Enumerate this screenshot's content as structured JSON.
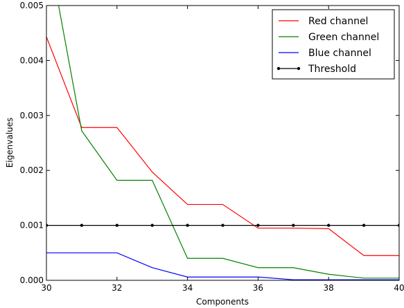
{
  "chart_data": {
    "type": "line",
    "title": "",
    "xlabel": "Components",
    "ylabel": "Eigenvalues",
    "xlim": [
      30,
      40
    ],
    "ylim": [
      0,
      0.005
    ],
    "xticks": [
      30,
      32,
      34,
      36,
      38,
      40
    ],
    "xtick_labels": [
      "30",
      "32",
      "34",
      "36",
      "38",
      "40"
    ],
    "yticks": [
      0,
      0.001,
      0.002,
      0.003,
      0.004,
      0.005
    ],
    "ytick_labels": [
      "0.000",
      "0.001",
      "0.002",
      "0.003",
      "0.004",
      "0.005"
    ],
    "grid": false,
    "legend_position": "top-right",
    "series": [
      {
        "name": "Red channel",
        "color": "#ff0000",
        "marker": "none",
        "x": [
          30,
          31,
          32,
          33,
          34,
          35,
          36,
          37,
          38,
          39,
          40
        ],
        "y": [
          0.00443,
          0.00278,
          0.00278,
          0.00197,
          0.00138,
          0.00138,
          0.00095,
          0.00095,
          0.00094,
          0.00045,
          0.00045
        ]
      },
      {
        "name": "Green channel",
        "color": "#008000",
        "marker": "none",
        "x": [
          30,
          31,
          32,
          33,
          34,
          35,
          36,
          37,
          38,
          39,
          40
        ],
        "y": [
          0.0062,
          0.00272,
          0.00182,
          0.00182,
          0.0004,
          0.0004,
          0.00023,
          0.00023,
          0.00011,
          4e-05,
          4e-05
        ]
      },
      {
        "name": "Blue channel",
        "color": "#0000ff",
        "marker": "none",
        "x": [
          30,
          31,
          32,
          33,
          34,
          35,
          36,
          37,
          38,
          39,
          40
        ],
        "y": [
          0.0005,
          0.0005,
          0.0005,
          0.00023,
          6e-05,
          6e-05,
          6e-05,
          1e-05,
          1e-05,
          1e-05,
          1e-05
        ]
      },
      {
        "name": "Threshold",
        "color": "#000000",
        "marker": "dot",
        "x": [
          30,
          31,
          32,
          33,
          34,
          35,
          36,
          37,
          38,
          39,
          40
        ],
        "y": [
          0.001,
          0.001,
          0.001,
          0.001,
          0.001,
          0.001,
          0.001,
          0.001,
          0.001,
          0.001,
          0.001
        ]
      }
    ]
  }
}
